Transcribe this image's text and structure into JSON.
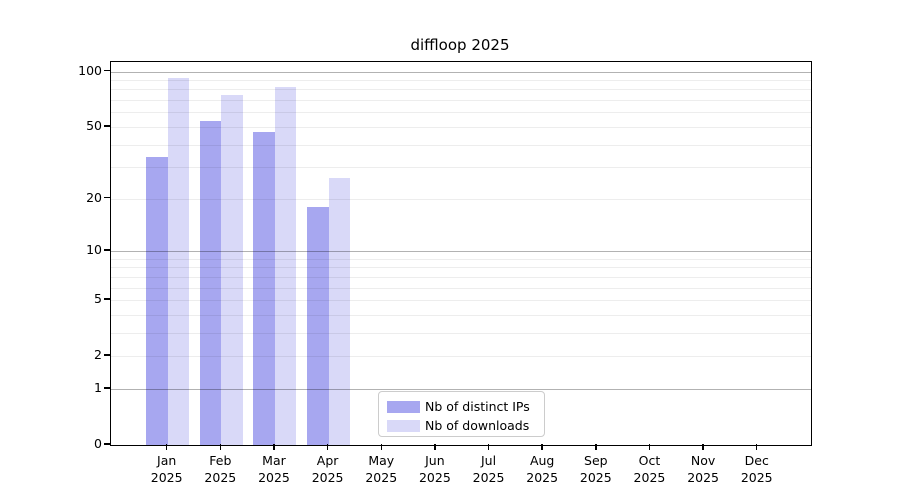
{
  "chart_data": {
    "type": "bar",
    "title": "diffloop 2025",
    "year_label": "2025",
    "categories": [
      "Jan 2025",
      "Feb 2025",
      "Mar 2025",
      "Apr 2025",
      "May 2025",
      "Jun 2025",
      "Jul 2025",
      "Aug 2025",
      "Sep 2025",
      "Oct 2025",
      "Nov 2025",
      "Dec 2025"
    ],
    "month_labels": [
      "Jan",
      "Feb",
      "Mar",
      "Apr",
      "May",
      "Jun",
      "Jul",
      "Aug",
      "Sep",
      "Oct",
      "Nov",
      "Dec"
    ],
    "series": [
      {
        "name": "Nb of distinct IPs",
        "color": "#a7a7f0",
        "values": [
          34,
          54,
          47,
          18,
          0,
          0,
          0,
          0,
          0,
          0,
          0,
          0
        ]
      },
      {
        "name": "Nb of downloads",
        "color": "#d9d9f8",
        "values": [
          92,
          75,
          83,
          26,
          0,
          0,
          0,
          0,
          0,
          0,
          0,
          0
        ]
      }
    ],
    "y_scale": "log1p",
    "ylim": [
      0,
      113
    ],
    "y_ticks": [
      0,
      1,
      2,
      5,
      10,
      20,
      50,
      100
    ],
    "y_major_gridlines": [
      1,
      10,
      100
    ],
    "y_minor_gridlines": [
      2,
      3,
      4,
      5,
      6,
      7,
      8,
      9,
      20,
      30,
      40,
      50,
      60,
      70,
      80,
      90
    ],
    "grid": true,
    "legend_position": "bottom-center"
  },
  "legend": {
    "items": [
      {
        "label": "Nb of distinct IPs"
      },
      {
        "label": "Nb of downloads"
      }
    ]
  },
  "colors": {
    "distinct_ips": "#a7a7f0",
    "downloads": "#d9d9f8",
    "major_grid": "rgba(0,0,0,0.30)",
    "minor_grid": "rgba(0,0,0,0.07)",
    "axis": "#000000"
  }
}
